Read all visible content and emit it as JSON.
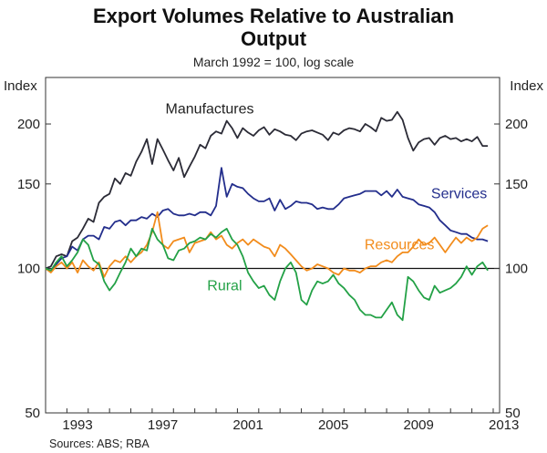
{
  "chart_data": {
    "type": "line",
    "title_lines": [
      "Export Volumes Relative to Australian",
      "Output"
    ],
    "subtitle": "March 1992 = 100, log scale",
    "ylabel_left": "Index",
    "ylabel_right": "Index",
    "yscale": "log",
    "ylim": [
      50,
      250
    ],
    "yticks": [
      50,
      100,
      150,
      200
    ],
    "ytick_labels": [
      "50",
      "100",
      "150",
      "200"
    ],
    "xlim": [
      1992.0,
      2013.3
    ],
    "xticks": [
      1993,
      1997,
      2001,
      2005,
      2009,
      2013
    ],
    "xtick_labels": [
      "1993",
      "1997",
      "2001",
      "2005",
      "2009",
      "2013"
    ],
    "reference_line": 100,
    "source": "Sources: ABS; RBA",
    "series": [
      {
        "name": "Manufactures",
        "color": "#2b2b36",
        "label_pos": {
          "x": 1999.7,
          "y": 215
        },
        "x": [
          1992.0,
          1992.25,
          1992.5,
          1992.75,
          1993.0,
          1993.25,
          1993.5,
          1993.75,
          1994.0,
          1994.25,
          1994.5,
          1994.75,
          1995.0,
          1995.25,
          1995.5,
          1995.75,
          1996.0,
          1996.25,
          1996.5,
          1996.75,
          1997.0,
          1997.25,
          1997.5,
          1997.75,
          1998.0,
          1998.25,
          1998.5,
          1998.75,
          1999.0,
          1999.25,
          1999.5,
          1999.75,
          2000.0,
          2000.25,
          2000.5,
          2000.75,
          2001.0,
          2001.25,
          2001.5,
          2001.75,
          2002.0,
          2002.25,
          2002.5,
          2002.75,
          2003.0,
          2003.25,
          2003.5,
          2003.75,
          2004.0,
          2004.25,
          2004.5,
          2004.75,
          2005.0,
          2005.25,
          2005.5,
          2005.75,
          2006.0,
          2006.25,
          2006.5,
          2006.75,
          2007.0,
          2007.25,
          2007.5,
          2007.75,
          2008.0,
          2008.25,
          2008.5,
          2008.75,
          2009.0,
          2009.25,
          2009.5,
          2009.75,
          2010.0,
          2010.25,
          2010.5,
          2010.75,
          2011.0,
          2011.25,
          2011.5,
          2011.75,
          2012.0,
          2012.25,
          2012.5,
          2012.75
        ],
        "values": [
          100,
          101,
          106,
          107,
          106,
          114,
          116,
          121,
          127,
          125,
          137,
          141,
          143,
          154,
          150,
          158,
          156,
          167,
          175,
          186,
          165,
          186,
          177,
          168,
          160,
          170,
          155,
          163,
          171,
          181,
          178,
          189,
          193,
          191,
          203,
          196,
          187,
          196,
          192,
          189,
          194,
          197,
          190,
          195,
          193,
          190,
          189,
          185,
          191,
          193,
          194,
          192,
          190,
          185,
          192,
          190,
          194,
          196,
          195,
          193,
          200,
          197,
          193,
          206,
          203,
          204,
          212,
          204,
          187,
          176,
          183,
          186,
          187,
          181,
          187,
          189,
          186,
          187,
          184,
          186,
          184,
          188,
          180,
          180
        ]
      },
      {
        "name": "Services",
        "color": "#232e8c",
        "label_pos": {
          "x": 2011.4,
          "y": 143
        },
        "x": [
          1992.0,
          1992.25,
          1992.5,
          1992.75,
          1993.0,
          1993.25,
          1993.5,
          1993.75,
          1994.0,
          1994.25,
          1994.5,
          1994.75,
          1995.0,
          1995.25,
          1995.5,
          1995.75,
          1996.0,
          1996.25,
          1996.5,
          1996.75,
          1997.0,
          1997.25,
          1997.5,
          1997.75,
          1998.0,
          1998.25,
          1998.5,
          1998.75,
          1999.0,
          1999.25,
          1999.5,
          1999.75,
          2000.0,
          2000.25,
          2000.5,
          2000.75,
          2001.0,
          2001.25,
          2001.5,
          2001.75,
          2002.0,
          2002.25,
          2002.5,
          2002.75,
          2003.0,
          2003.25,
          2003.5,
          2003.75,
          2004.0,
          2004.25,
          2004.5,
          2004.75,
          2005.0,
          2005.25,
          2005.5,
          2005.75,
          2006.0,
          2006.25,
          2006.5,
          2006.75,
          2007.0,
          2007.25,
          2007.5,
          2007.75,
          2008.0,
          2008.25,
          2008.5,
          2008.75,
          2009.0,
          2009.25,
          2009.5,
          2009.75,
          2010.0,
          2010.25,
          2010.5,
          2010.75,
          2011.0,
          2011.25,
          2011.5,
          2011.75,
          2012.0,
          2012.25,
          2012.5,
          2012.75
        ],
        "values": [
          100,
          99,
          102,
          105,
          106,
          111,
          109,
          115,
          117,
          117,
          115,
          122,
          121,
          125,
          126,
          123,
          126,
          126,
          128,
          127,
          130,
          128,
          132,
          133,
          130,
          129,
          129,
          130,
          129,
          131,
          131,
          129,
          135,
          162,
          141,
          150,
          148,
          147,
          143,
          140,
          138,
          138,
          140,
          132,
          139,
          133,
          135,
          138,
          137,
          137,
          136,
          133,
          134,
          133,
          133,
          136,
          140,
          141,
          142,
          143,
          145,
          145,
          145,
          142,
          145,
          141,
          146,
          141,
          140,
          139,
          136,
          135,
          134,
          131,
          126,
          123,
          120,
          119,
          118,
          118,
          116,
          115,
          115,
          114
        ]
      },
      {
        "name": "Resources",
        "color": "#f28c1c",
        "label_pos": {
          "x": 2008.6,
          "y": 112
        },
        "x": [
          1992.0,
          1992.25,
          1992.5,
          1992.75,
          1993.0,
          1993.25,
          1993.5,
          1993.75,
          1994.0,
          1994.25,
          1994.5,
          1994.75,
          1995.0,
          1995.25,
          1995.5,
          1995.75,
          1996.0,
          1996.25,
          1996.5,
          1996.75,
          1997.0,
          1997.25,
          1997.5,
          1997.75,
          1998.0,
          1998.25,
          1998.5,
          1998.75,
          1999.0,
          1999.25,
          1999.5,
          1999.75,
          2000.0,
          2000.25,
          2000.5,
          2000.75,
          2001.0,
          2001.25,
          2001.5,
          2001.75,
          2002.0,
          2002.25,
          2002.5,
          2002.75,
          2003.0,
          2003.25,
          2003.5,
          2003.75,
          2004.0,
          2004.25,
          2004.5,
          2004.75,
          2005.0,
          2005.25,
          2005.5,
          2005.75,
          2006.0,
          2006.25,
          2006.5,
          2006.75,
          2007.0,
          2007.25,
          2007.5,
          2007.75,
          2008.0,
          2008.25,
          2008.5,
          2008.75,
          2009.0,
          2009.25,
          2009.5,
          2009.75,
          2010.0,
          2010.25,
          2010.5,
          2010.75,
          2011.0,
          2011.25,
          2011.5,
          2011.75,
          2012.0,
          2012.25,
          2012.5,
          2012.75
        ],
        "values": [
          100,
          98,
          101,
          103,
          100,
          103,
          98,
          104,
          101,
          99,
          103,
          96,
          101,
          104,
          103,
          106,
          103,
          106,
          108,
          112,
          119,
          131,
          112,
          110,
          114,
          115,
          116,
          108,
          113,
          114,
          115,
          119,
          115,
          117,
          112,
          110,
          113,
          115,
          112,
          115,
          113,
          111,
          110,
          106,
          112,
          110,
          107,
          104,
          101,
          99,
          100,
          102,
          101,
          100,
          98,
          97,
          100,
          99,
          99,
          98,
          100,
          101,
          101,
          103,
          104,
          103,
          106,
          108,
          108,
          111,
          115,
          112,
          113,
          116,
          112,
          108,
          112,
          116,
          113,
          116,
          114,
          116,
          121,
          123
        ]
      },
      {
        "name": "Rural",
        "color": "#23a146",
        "label_pos": {
          "x": 2000.4,
          "y": 92
        },
        "x": [
          1992.0,
          1992.25,
          1992.5,
          1992.75,
          1993.0,
          1993.25,
          1993.5,
          1993.75,
          1994.0,
          1994.25,
          1994.5,
          1994.75,
          1995.0,
          1995.25,
          1995.5,
          1995.75,
          1996.0,
          1996.25,
          1996.5,
          1996.75,
          1997.0,
          1997.25,
          1997.5,
          1997.75,
          1998.0,
          1998.25,
          1998.5,
          1998.75,
          1999.0,
          1999.25,
          1999.5,
          1999.75,
          2000.0,
          2000.25,
          2000.5,
          2000.75,
          2001.0,
          2001.25,
          2001.5,
          2001.75,
          2002.0,
          2002.25,
          2002.5,
          2002.75,
          2003.0,
          2003.25,
          2003.5,
          2003.75,
          2004.0,
          2004.25,
          2004.5,
          2004.75,
          2005.0,
          2005.25,
          2005.5,
          2005.75,
          2006.0,
          2006.25,
          2006.5,
          2006.75,
          2007.0,
          2007.25,
          2007.5,
          2007.75,
          2008.0,
          2008.25,
          2008.5,
          2008.75,
          2009.0,
          2009.25,
          2009.5,
          2009.75,
          2010.0,
          2010.25,
          2010.5,
          2010.75,
          2011.0,
          2011.25,
          2011.5,
          2011.75,
          2012.0,
          2012.25,
          2012.5,
          2012.75
        ],
        "values": [
          100,
          99,
          103,
          106,
          101,
          104,
          108,
          115,
          112,
          104,
          102,
          94,
          90,
          93,
          98,
          103,
          110,
          106,
          110,
          109,
          121,
          115,
          112,
          105,
          104,
          109,
          110,
          113,
          114,
          116,
          115,
          118,
          116,
          119,
          121,
          115,
          112,
          106,
          98,
          94,
          91,
          92,
          88,
          86,
          94,
          100,
          103,
          98,
          86,
          84,
          90,
          94,
          93,
          94,
          97,
          93,
          91,
          88,
          86,
          82,
          80,
          80,
          79,
          79,
          82,
          85,
          80,
          78,
          96,
          94,
          90,
          87,
          86,
          92,
          89,
          90,
          91,
          93,
          96,
          101,
          97,
          101,
          103,
          99
        ]
      }
    ]
  }
}
